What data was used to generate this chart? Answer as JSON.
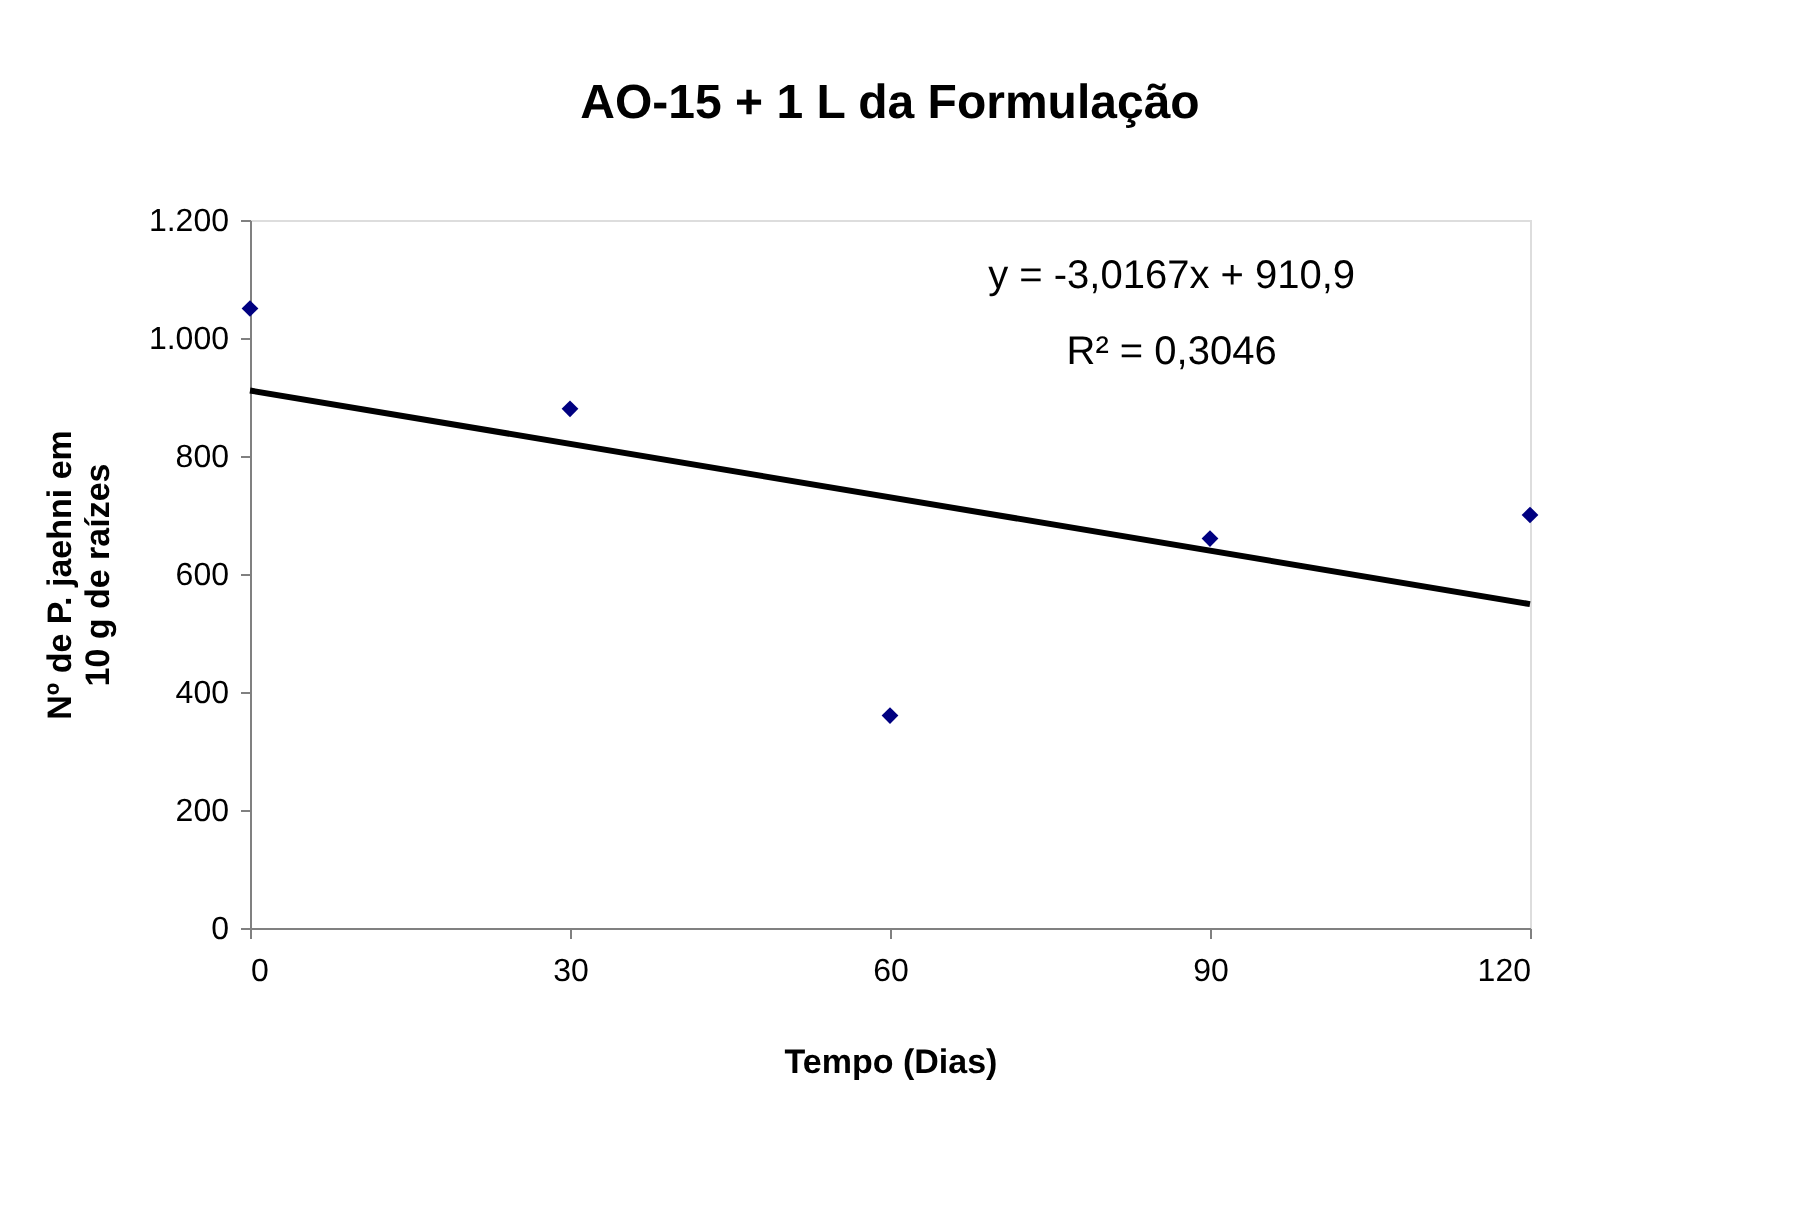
{
  "chart_data": {
    "type": "scatter",
    "title": "AO-15 + 1 L da Formulação",
    "xlabel": "Tempo (Dias)",
    "ylabel": "Nº de P. jaehni em\n10 g de raízes",
    "x": [
      0,
      30,
      60,
      90,
      120
    ],
    "series": [
      {
        "color": "#000080",
        "marker": "diamond",
        "values": [
          1050,
          880,
          360,
          660,
          700
        ]
      },
      {
        "type": "line",
        "color": "#000000",
        "line_style": "solid",
        "x": [
          0,
          120
        ],
        "values": [
          911,
          549
        ]
      }
    ],
    "xlim": [
      0,
      120
    ],
    "xticks": [
      0,
      30,
      60,
      90,
      120
    ],
    "ylim": [
      0,
      1200
    ],
    "yticks": [
      0,
      200,
      400,
      600,
      800,
      {
        "value": 1000,
        "label": "1.000"
      },
      {
        "value": 1200,
        "label": "1.200"
      }
    ],
    "annotations": [
      "y = -3,0167x + 910,9",
      "R² = 0,3046"
    ],
    "grid": false
  }
}
